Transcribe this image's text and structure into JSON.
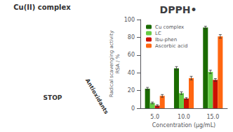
{
  "chart_data": {
    "type": "bar",
    "title": "DPPH•",
    "annotations": [
      "Cu(II) complex",
      "STOP",
      "Antioxidants"
    ],
    "xlabel": "Concentration (μg/mL)",
    "ylabel": "Radical scavenging activity\nRSA / %",
    "categories": [
      "5.0",
      "10.0",
      "15.0"
    ],
    "series": [
      {
        "name": "Cu complex",
        "color": "#1a6b00",
        "values": [
          22,
          45,
          91
        ],
        "errors": [
          1.5,
          2.0,
          1.5
        ]
      },
      {
        "name": "LC",
        "color": "#66cc44",
        "values": [
          6,
          17,
          41
        ],
        "errors": [
          1.0,
          1.5,
          2.0
        ]
      },
      {
        "name": "Ibu-phen",
        "color": "#cc1100",
        "values": [
          3,
          11,
          32
        ],
        "errors": [
          1.0,
          1.0,
          1.5
        ]
      },
      {
        "name": "Ascorbic acid",
        "color": "#ff6611",
        "values": [
          14,
          34,
          81
        ],
        "errors": [
          1.5,
          2.0,
          2.0
        ]
      }
    ],
    "ylim": [
      0,
      100
    ],
    "yticks": [
      0,
      20,
      40,
      60,
      80,
      100
    ],
    "legend": "upper left"
  }
}
